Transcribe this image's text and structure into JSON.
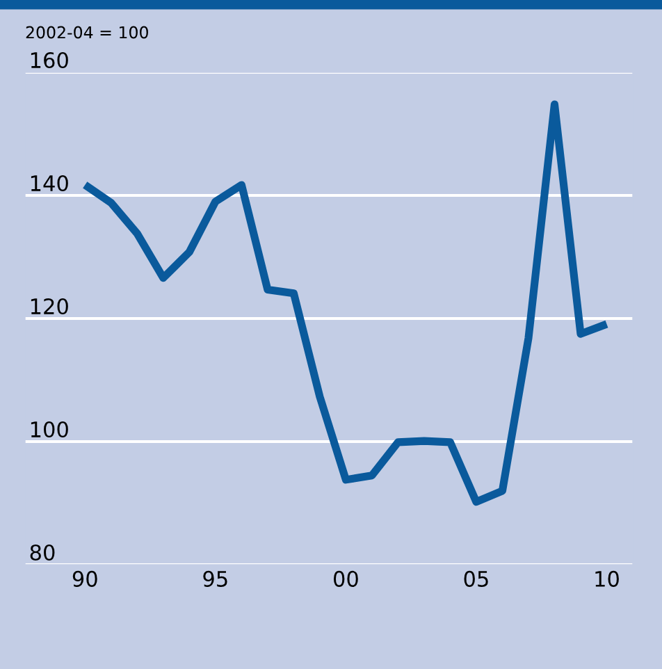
{
  "chart_data": {
    "type": "line",
    "ylabel": "2002-04 = 100",
    "x": [
      1990,
      1991,
      1992,
      1993,
      1994,
      1995,
      1996,
      1997,
      1998,
      1999,
      2000,
      2001,
      2002,
      2003,
      2004,
      2005,
      2006,
      2007,
      2008,
      2009,
      2010
    ],
    "series": [
      {
        "color": "#0a5a9c",
        "values": [
          141.7,
          138.8,
          133.8,
          126.6,
          130.8,
          139.0,
          141.7,
          124.7,
          124.1,
          107.3,
          93.8,
          94.5,
          99.9,
          100.1,
          99.9,
          90.2,
          92.0,
          116.8,
          154.8,
          117.5,
          119.1
        ]
      }
    ],
    "xlim": [
      1987.7,
      2011
    ],
    "ylim": [
      80,
      160
    ],
    "xticks": [
      {
        "value": 1990,
        "label": "90"
      },
      {
        "value": 1995,
        "label": "95"
      },
      {
        "value": 2000,
        "label": "00"
      },
      {
        "value": 2005,
        "label": "05"
      },
      {
        "value": 2010,
        "label": "10"
      }
    ],
    "yticks": [
      80,
      100,
      120,
      140,
      160
    ],
    "grid": "y",
    "marker": "none",
    "line_style": "solid"
  }
}
